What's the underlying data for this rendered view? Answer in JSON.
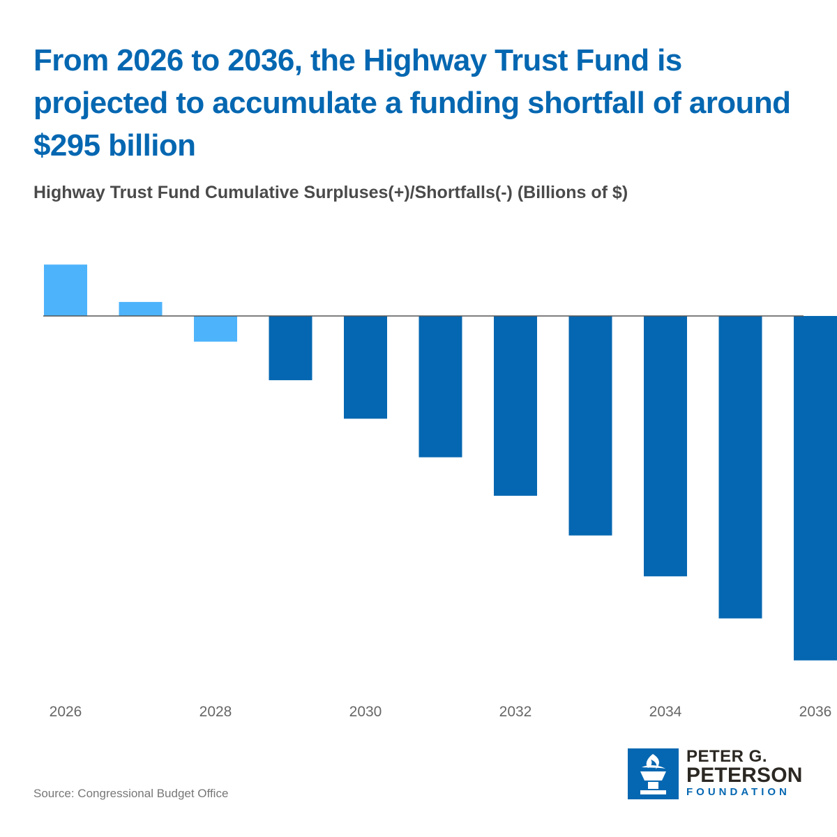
{
  "title": "From 2026 to 2036, the Highway Trust Fund is projected to accumulate a funding shortfall of around $295 billion",
  "subtitle": "Highway Trust Fund Cumulative Surpluses(+)/Shortfalls(-) (Billions of $)",
  "source": "Source: Congressional Budget Office",
  "logo": {
    "line1": "PETER G.",
    "line2": "PETERSON",
    "line3": "FOUNDATION",
    "icon": "torch-icon"
  },
  "colors": {
    "title": "#0567b1",
    "positive": "#4db3fb",
    "negative": "#0567b1",
    "axis": "#555555",
    "tick_text": "#666666"
  },
  "chart_data": {
    "type": "bar",
    "title": "Highway Trust Fund Cumulative Surpluses(+)/Shortfalls(-) (Billions of $)",
    "xlabel": "",
    "ylabel": "Billions of $",
    "categories": [
      "2026",
      "2027",
      "2028",
      "2029",
      "2030",
      "2031",
      "2032",
      "2033",
      "2034",
      "2035",
      "2036"
    ],
    "values": [
      44,
      12,
      -22,
      -55,
      -88,
      -121,
      -154,
      -188,
      -223,
      -259,
      -295
    ],
    "highlighted": [
      true,
      true,
      true,
      false,
      false,
      false,
      false,
      false,
      false,
      false,
      false
    ],
    "tick_labels_shown": [
      "2026",
      "2028",
      "2030",
      "2032",
      "2034",
      "2036"
    ],
    "ylim": [
      -295,
      44
    ],
    "grid": false
  }
}
